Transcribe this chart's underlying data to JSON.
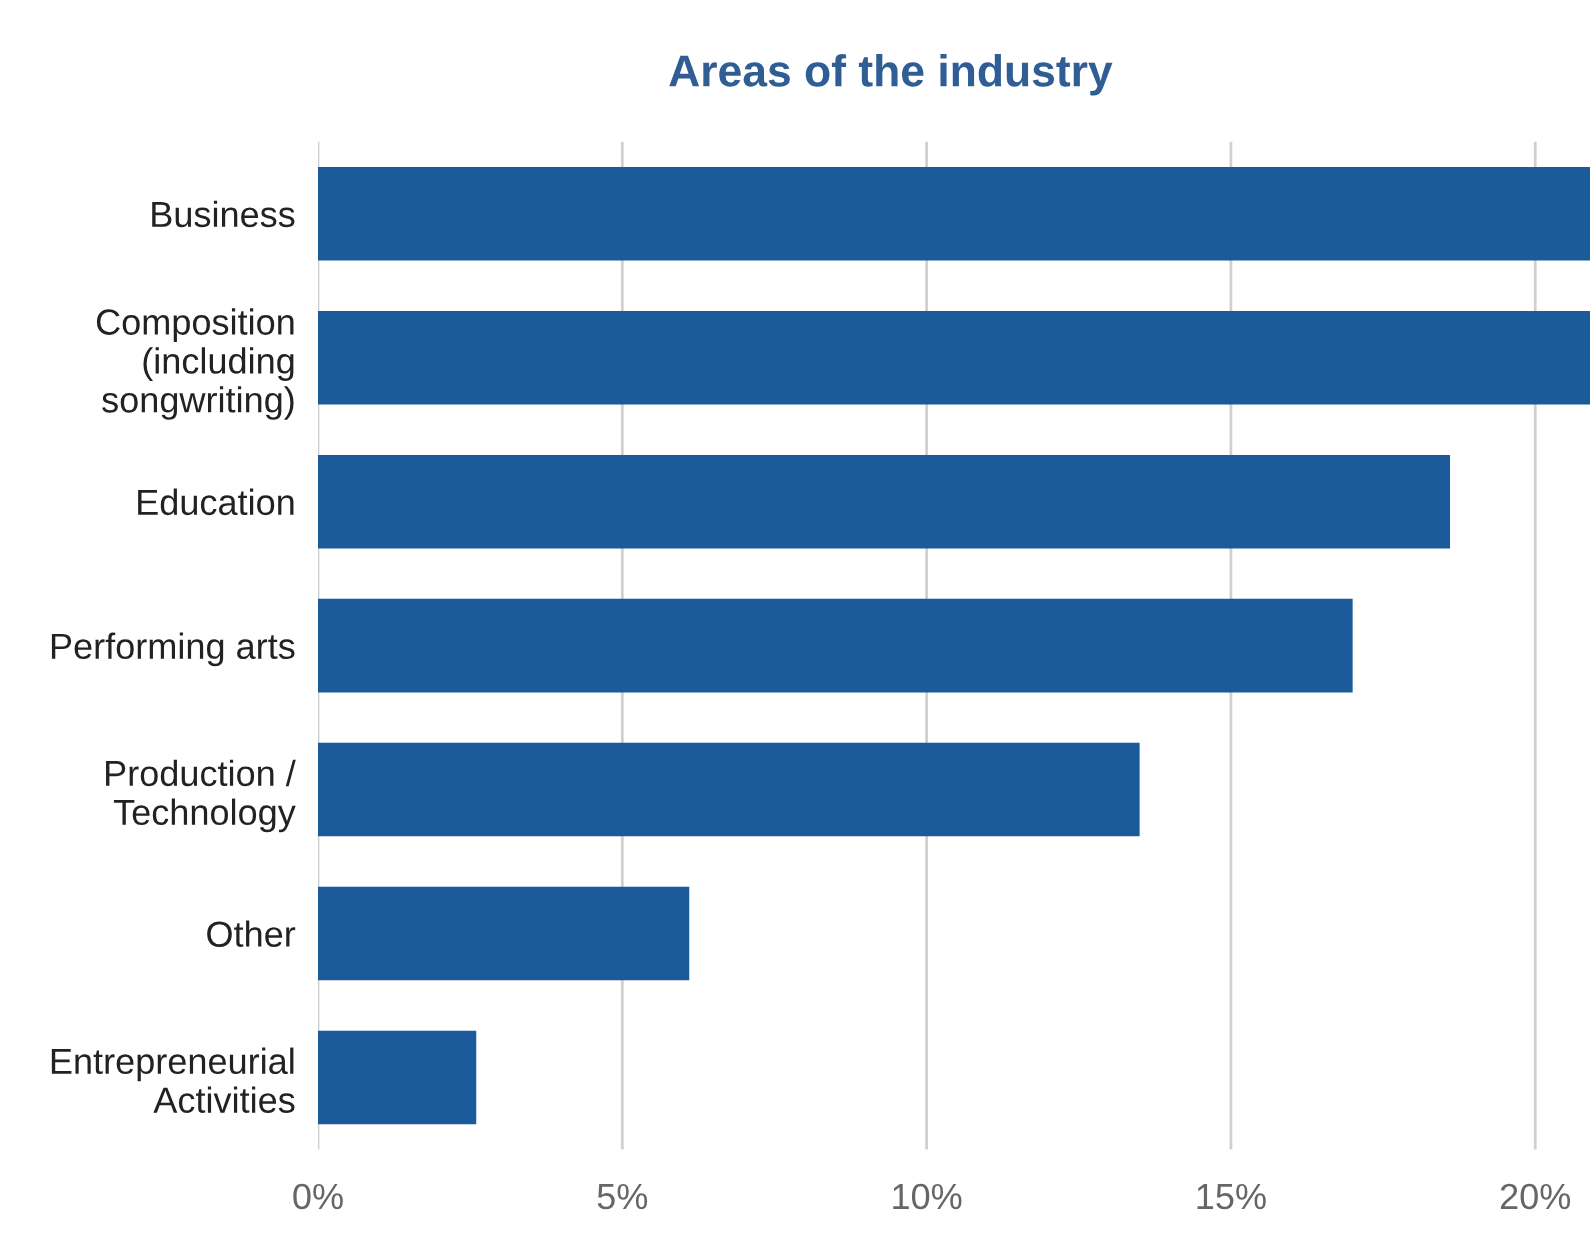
{
  "chart_data": {
    "type": "bar",
    "orientation": "horizontal",
    "title": "Areas of the industry",
    "categories": [
      "Business",
      "Composition\n(including\nsongwriting)",
      "Education",
      "Performing arts",
      "Production /\nTechnology",
      "Other",
      "Entrepreneurial\nActivities"
    ],
    "values": [
      20.9,
      20.9,
      18.6,
      17.0,
      13.5,
      6.1,
      2.6
    ],
    "color": "#1c5b9b",
    "xlim": [
      0,
      20.9
    ],
    "xticks": [
      {
        "value": 0,
        "label": "0%"
      },
      {
        "value": 5,
        "label": "5%"
      },
      {
        "value": 10,
        "label": "10%"
      },
      {
        "value": 15,
        "label": "15%"
      },
      {
        "value": 20,
        "label": "20%"
      }
    ],
    "grid": "x"
  }
}
